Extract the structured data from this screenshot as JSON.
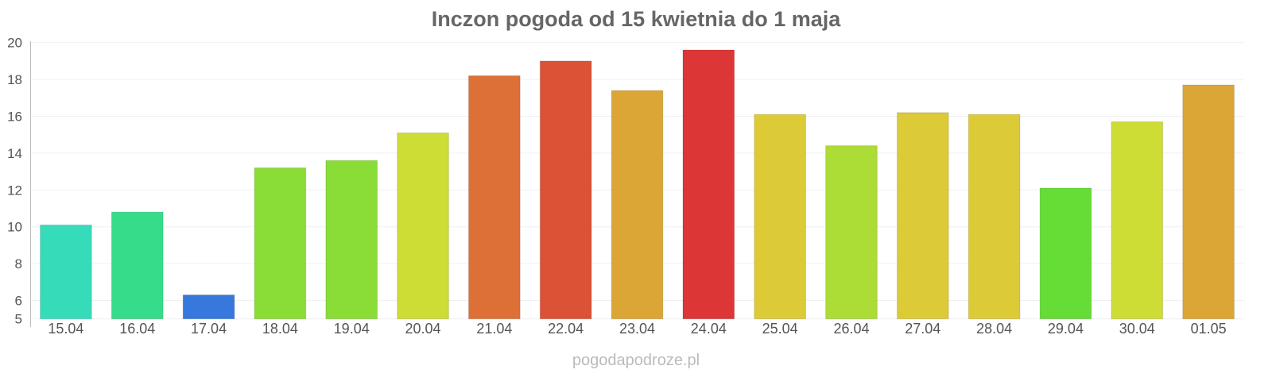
{
  "chart_data": {
    "type": "bar",
    "title": "Inczon pogoda od 15 kwietnia do 1 maja",
    "xlabel": "",
    "ylabel": "",
    "ylim": [
      5,
      20
    ],
    "yticks": [
      5,
      6,
      8,
      10,
      12,
      14,
      16,
      18,
      20
    ],
    "grid": true,
    "categories": [
      "15.04",
      "16.04",
      "17.04",
      "18.04",
      "19.04",
      "20.04",
      "21.04",
      "22.04",
      "23.04",
      "24.04",
      "25.04",
      "26.04",
      "27.04",
      "28.04",
      "29.04",
      "30.04",
      "01.05"
    ],
    "values": [
      10.1,
      10.8,
      6.3,
      13.2,
      13.6,
      15.1,
      18.2,
      19.0,
      17.4,
      19.6,
      16.1,
      14.4,
      16.2,
      16.1,
      12.1,
      15.7,
      17.7
    ],
    "colors": [
      "#36dcba",
      "#36dc8a",
      "#3678dc",
      "#8adc36",
      "#8adc36",
      "#cedc36",
      "#dc7036",
      "#dc5236",
      "#dca636",
      "#dc3636",
      "#dcca36",
      "#acdc36",
      "#dcca36",
      "#dcca36",
      "#66dc36",
      "#cedc36",
      "#dca636"
    ]
  },
  "footer": {
    "source": "pogodapodroze.pl"
  }
}
